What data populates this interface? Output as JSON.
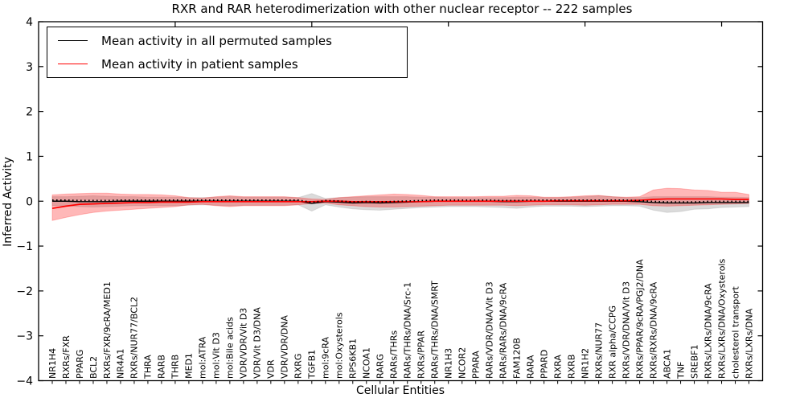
{
  "figure": {
    "title": "RXR and RAR heterodimerization with other nuclear receptor -- 222 samples",
    "xlabel": "Cellular Entities",
    "ylabel": "Inferred Activity"
  },
  "legend": {
    "position": "upper left",
    "items": [
      {
        "label": "Mean activity in all permuted samples",
        "color": "#000000"
      },
      {
        "label": "Mean activity in patient samples",
        "color": "#ff0000"
      }
    ]
  },
  "chart_data": {
    "type": "line",
    "title": "RXR and RAR heterodimerization with other nuclear receptor -- 222 samples",
    "xlabel": "Cellular Entities",
    "ylabel": "Inferred Activity",
    "ylim": [
      -4,
      4
    ],
    "yticks": [
      -4,
      -3,
      -2,
      -1,
      0,
      1,
      2,
      3,
      4
    ],
    "xlim": [
      0,
      53
    ],
    "xticks_major": [
      10,
      20,
      30,
      40,
      50
    ],
    "grid": false,
    "legend_position": "upper left",
    "categories": [
      "NR1H4",
      "RXRs/FXR",
      "PPARG",
      "BCL2",
      "RXRs/FXR/9cRA/MED1",
      "NR4A1",
      "RXRs/NUR77/BCL2",
      "THRA",
      "RARB",
      "THRB",
      "MED1",
      "mol:ATRA",
      "mol:Vit D3",
      "mol:Bile acids",
      "VDR/VDR/Vit D3",
      "VDR/Vit D3/DNA",
      "VDR",
      "VDR/VDR/DNA",
      "RXRG",
      "TGFB1",
      "mol:9cRA",
      "mol:Oxysterols",
      "RPS6KB1",
      "NCOA1",
      "RARG",
      "RARs/THRs",
      "RARs/THRs/DNA/Src-1",
      "RXRs/PPAR",
      "RARs/THRs/DNA/SMRT",
      "NR1H3",
      "NCOR2",
      "PPARA",
      "RARs/VDR/DNA/Vit D3",
      "RARs/RARs/DNA/9cRA",
      "FAM120B",
      "RARA",
      "PPARD",
      "RXRA",
      "RXRB",
      "NR1H2",
      "RXRs/NUR77",
      "RXR alpha/CCPG",
      "RXRs/VDR/DNA/Vit D3",
      "RXRs/PPAR/9cRA/PGJ2/DNA",
      "RXRs/RXRs/DNA/9cRA",
      "ABCA1",
      "TNF",
      "SREBF1",
      "RXRs/LXRs/DNA/9cRA",
      "RXRs/LXRs/DNA/Oxysterols",
      "cholesterol transport",
      "RXRs/LXRs/DNA"
    ],
    "series": [
      {
        "name": "Mean activity in all permuted samples",
        "color": "#000000",
        "width": 1.4,
        "values": [
          0,
          0,
          -0.01,
          -0.01,
          -0.01,
          0,
          0,
          0,
          0,
          0,
          0,
          0,
          0,
          0,
          0,
          0,
          0,
          0,
          0,
          -0.05,
          -0.01,
          -0.02,
          -0.04,
          -0.03,
          -0.04,
          -0.03,
          -0.02,
          -0.01,
          0,
          0,
          0,
          0,
          0,
          -0.01,
          -0.01,
          0,
          0,
          0,
          0,
          0,
          0,
          0,
          0,
          -0.01,
          -0.03,
          -0.04,
          -0.04,
          -0.04,
          -0.03,
          -0.03,
          -0.03,
          -0.03
        ]
      },
      {
        "name": "Mean activity in patient samples",
        "color": "#ff0000",
        "width": 1.7,
        "values": [
          -0.16,
          -0.11,
          -0.07,
          -0.06,
          -0.05,
          -0.04,
          -0.03,
          -0.03,
          -0.02,
          -0.02,
          -0.02,
          -0.01,
          -0.01,
          -0.01,
          -0.01,
          -0.01,
          -0.01,
          -0.01,
          -0.01,
          -0.01,
          0,
          0,
          -0.01,
          -0.01,
          -0.01,
          -0.01,
          -0.01,
          -0.01,
          0,
          0,
          0,
          0,
          0,
          0,
          0,
          0,
          0,
          0.01,
          0.01,
          0.01,
          0.01,
          0.01,
          0.01,
          0.02,
          0.04,
          0.05,
          0.05,
          0.05,
          0.05,
          0.05,
          0.04,
          0.04
        ]
      }
    ],
    "bands": [
      {
        "name": "permuted-std-band",
        "fill": "#999999",
        "opacity": 0.35,
        "upper": [
          0.1,
          0.1,
          0.11,
          0.12,
          0.11,
          0.1,
          0.1,
          0.09,
          0.09,
          0.09,
          0.08,
          0.08,
          0.09,
          0.1,
          0.09,
          0.09,
          0.09,
          0.09,
          0.08,
          0.17,
          0.06,
          0.08,
          0.09,
          0.1,
          0.1,
          0.1,
          0.1,
          0.09,
          0.09,
          0.08,
          0.08,
          0.08,
          0.08,
          0.08,
          0.09,
          0.09,
          0.08,
          0.08,
          0.09,
          0.1,
          0.12,
          0.1,
          0.08,
          0.08,
          0.1,
          0.1,
          0.1,
          0.1,
          0.1,
          0.09,
          0.09,
          0.08
        ],
        "lower": [
          -0.1,
          -0.1,
          -0.12,
          -0.13,
          -0.12,
          -0.11,
          -0.1,
          -0.1,
          -0.1,
          -0.1,
          -0.09,
          -0.08,
          -0.09,
          -0.1,
          -0.09,
          -0.09,
          -0.09,
          -0.09,
          -0.08,
          -0.22,
          -0.08,
          -0.13,
          -0.17,
          -0.19,
          -0.2,
          -0.18,
          -0.16,
          -0.14,
          -0.13,
          -0.12,
          -0.12,
          -0.12,
          -0.13,
          -0.14,
          -0.16,
          -0.13,
          -0.11,
          -0.11,
          -0.11,
          -0.12,
          -0.11,
          -0.1,
          -0.1,
          -0.11,
          -0.2,
          -0.25,
          -0.23,
          -0.18,
          -0.17,
          -0.14,
          -0.13,
          -0.12
        ]
      },
      {
        "name": "patient-std-band",
        "fill": "#ff0000",
        "opacity": 0.28,
        "upper": [
          0.14,
          0.16,
          0.17,
          0.18,
          0.18,
          0.16,
          0.15,
          0.15,
          0.14,
          0.12,
          0.08,
          0.07,
          0.1,
          0.12,
          0.1,
          0.1,
          0.1,
          0.1,
          0.08,
          0.05,
          0.04,
          0.08,
          0.1,
          0.12,
          0.14,
          0.16,
          0.15,
          0.13,
          0.1,
          0.1,
          0.1,
          0.1,
          0.11,
          0.11,
          0.13,
          0.12,
          0.09,
          0.09,
          0.1,
          0.12,
          0.13,
          0.1,
          0.09,
          0.1,
          0.25,
          0.29,
          0.28,
          0.25,
          0.24,
          0.2,
          0.2,
          0.15
        ],
        "lower": [
          -0.43,
          -0.36,
          -0.3,
          -0.25,
          -0.22,
          -0.2,
          -0.18,
          -0.16,
          -0.14,
          -0.12,
          -0.08,
          -0.07,
          -0.1,
          -0.12,
          -0.1,
          -0.1,
          -0.1,
          -0.1,
          -0.08,
          -0.05,
          -0.04,
          -0.08,
          -0.1,
          -0.12,
          -0.13,
          -0.13,
          -0.12,
          -0.11,
          -0.1,
          -0.09,
          -0.09,
          -0.09,
          -0.09,
          -0.09,
          -0.1,
          -0.09,
          -0.08,
          -0.08,
          -0.08,
          -0.09,
          -0.08,
          -0.07,
          -0.07,
          -0.07,
          -0.1,
          -0.11,
          -0.1,
          -0.09,
          -0.08,
          -0.07,
          -0.06,
          -0.05
        ]
      }
    ]
  }
}
